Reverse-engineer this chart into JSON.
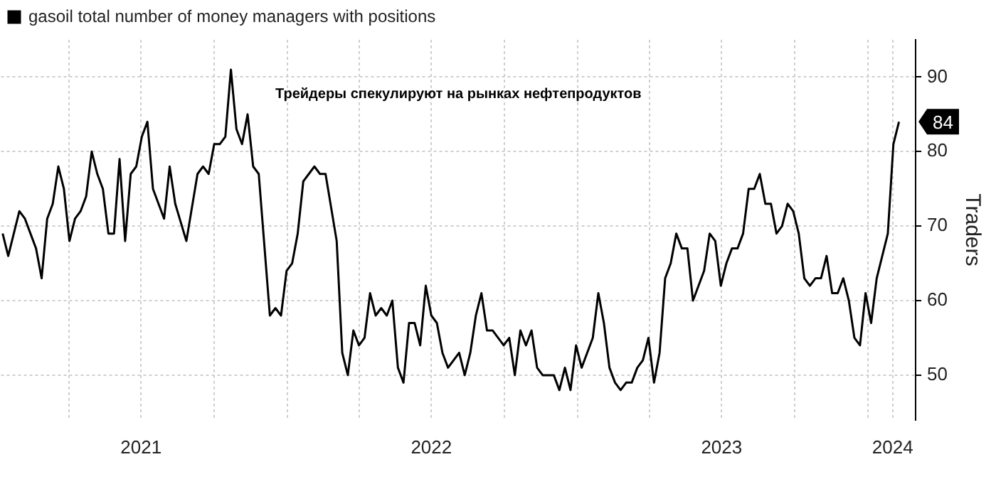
{
  "chart_data": {
    "type": "line",
    "title": "Трейдеры спекулируют на рынках нефтепродуктов",
    "ylabel": "Traders",
    "x": [
      "2021-01-08",
      "2021-01-15",
      "2021-01-29",
      "2021-02-05",
      "2021-02-19",
      "2021-02-26",
      "2021-03-05",
      "2021-03-12",
      "2021-03-19",
      "2021-03-26",
      "2021-04-02",
      "2021-04-09",
      "2021-04-16",
      "2021-04-23",
      "2021-04-30",
      "2021-05-07",
      "2021-05-14",
      "2021-05-21",
      "2021-05-28",
      "2021-06-04",
      "2021-06-11",
      "2021-06-18",
      "2021-06-25",
      "2021-07-02",
      "2021-07-09",
      "2021-07-16",
      "2021-07-30",
      "2021-08-06",
      "2021-08-13",
      "2021-08-27",
      "2021-09-10",
      "2021-09-17",
      "2021-09-24",
      "2021-10-01",
      "2021-10-08",
      "2021-10-15",
      "2021-10-22",
      "2021-10-29",
      "2021-11-05",
      "2021-11-12",
      "2021-11-19",
      "2021-11-26",
      "2021-12-10",
      "2021-12-17",
      "2021-12-24",
      "2021-12-31",
      "2022-01-07",
      "2022-01-14",
      "2022-01-21",
      "2022-02-04",
      "2022-02-11",
      "2022-02-18",
      "2022-03-04",
      "2022-03-11",
      "2022-03-18",
      "2022-03-25",
      "2022-04-01",
      "2022-04-08",
      "2022-04-15",
      "2022-04-22",
      "2022-04-29",
      "2022-05-06",
      "2022-05-13",
      "2022-05-20",
      "2022-05-27",
      "2022-06-03",
      "2022-06-10",
      "2022-06-17",
      "2022-06-24",
      "2022-07-01",
      "2022-07-08",
      "2022-07-15",
      "2022-07-22",
      "2022-08-05",
      "2022-08-12",
      "2022-08-19",
      "2022-08-26",
      "2022-09-02",
      "2022-09-09",
      "2022-09-16",
      "2022-09-30",
      "2022-10-07",
      "2022-10-14",
      "2022-10-21",
      "2022-10-28",
      "2022-11-04",
      "2022-11-11",
      "2022-11-18",
      "2022-12-02",
      "2022-12-09",
      "2022-12-16",
      "2022-12-23",
      "2022-12-30",
      "2023-01-06",
      "2023-01-20",
      "2023-01-27",
      "2023-02-03",
      "2023-02-10",
      "2023-02-17",
      "2023-02-24",
      "2023-03-03",
      "2023-03-10",
      "2023-03-17",
      "2023-03-24",
      "2023-03-31",
      "2023-04-07",
      "2023-04-14",
      "2023-04-21",
      "2023-04-28",
      "2023-05-05",
      "2023-05-12",
      "2023-05-19",
      "2023-05-26",
      "2023-06-09",
      "2023-06-16",
      "2023-06-23",
      "2023-06-30",
      "2023-07-07",
      "2023-07-14",
      "2023-07-21",
      "2023-07-28",
      "2023-08-04",
      "2023-08-11",
      "2023-08-18",
      "2023-08-25",
      "2023-09-01",
      "2023-09-08",
      "2023-09-15",
      "2023-09-22",
      "2023-09-29",
      "2023-10-06",
      "2023-10-13",
      "2023-10-20",
      "2023-10-27",
      "2023-11-03",
      "2023-11-10",
      "2023-11-17",
      "2023-11-24",
      "2023-12-01",
      "2023-12-08",
      "2023-12-15",
      "2023-12-22",
      "2023-12-29",
      "2024-01-05",
      "2024-01-12",
      "2024-01-19",
      "2024-01-26",
      "2024-02-02",
      "2024-02-09"
    ],
    "series": [
      {
        "name": "gasoil total number of money managers with positions",
        "color": "#000000",
        "values": [
          69,
          66,
          72,
          71,
          67,
          63,
          71,
          73,
          78,
          75,
          68,
          71,
          72,
          74,
          80,
          77,
          75,
          69,
          69,
          79,
          68,
          77,
          78,
          82,
          84,
          75,
          71,
          78,
          73,
          68,
          77,
          78,
          77,
          81,
          81,
          82,
          91,
          83,
          81,
          85,
          78,
          77,
          58,
          59,
          58,
          64,
          65,
          69,
          76,
          78,
          77,
          77,
          68,
          53,
          50,
          56,
          54,
          55,
          61,
          58,
          59,
          58,
          60,
          51,
          49,
          57,
          57,
          54,
          62,
          58,
          57,
          53,
          51,
          53,
          50,
          53,
          58,
          61,
          56,
          56,
          54,
          55,
          50,
          56,
          54,
          56,
          51,
          50,
          50,
          48,
          51,
          48,
          54,
          51,
          55,
          61,
          57,
          51,
          49,
          48,
          49,
          49,
          51,
          52,
          55,
          49,
          53,
          63,
          65,
          69,
          67,
          67,
          60,
          64,
          69,
          68,
          62,
          65,
          67,
          67,
          69,
          75,
          75,
          77,
          73,
          73,
          69,
          70,
          73,
          72,
          69,
          63,
          62,
          63,
          63,
          66,
          61,
          61,
          63,
          60,
          55,
          54,
          61,
          57,
          63,
          66,
          69,
          81,
          84
        ]
      }
    ],
    "xlim": [
      "2021-01-06",
      "2024-03-01"
    ],
    "xticks": [
      {
        "value": "2021-04-01",
        "label": null
      },
      {
        "value": "2021-07-01",
        "label": "2021"
      },
      {
        "value": "2021-10-01",
        "label": null
      },
      {
        "value": "2022-01-01",
        "label": null
      },
      {
        "value": "2022-04-01",
        "label": null
      },
      {
        "value": "2022-07-01",
        "label": "2022"
      },
      {
        "value": "2022-10-01",
        "label": null
      },
      {
        "value": "2023-01-01",
        "label": null
      },
      {
        "value": "2023-04-01",
        "label": null
      },
      {
        "value": "2023-07-01",
        "label": "2023"
      },
      {
        "value": "2023-10-01",
        "label": null
      },
      {
        "value": "2024-01-01",
        "label": null
      },
      {
        "value": "2024-02-01",
        "label": "2024"
      }
    ],
    "ylim": [
      44,
      95
    ],
    "yticks": [
      50,
      60,
      70,
      80,
      90
    ],
    "annotations": [
      {
        "text": "84",
        "x": "2024-02-09",
        "y": 84
      }
    ],
    "grid": true,
    "legend": "top left",
    "marker": "none",
    "line_style": "solid"
  }
}
